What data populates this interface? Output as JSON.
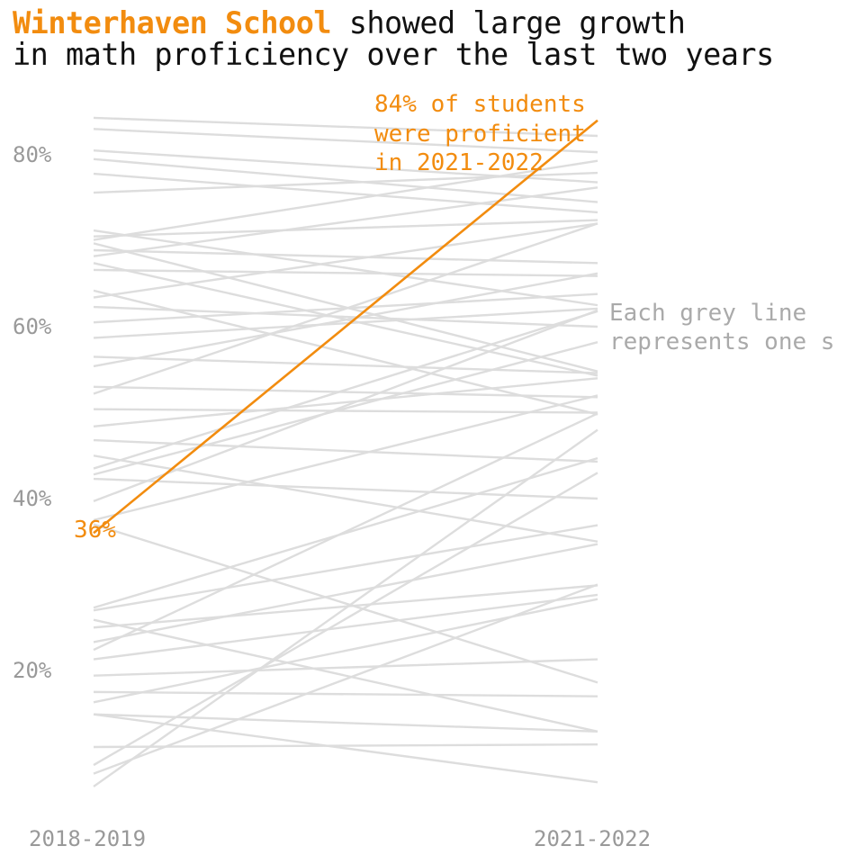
{
  "title": {
    "highlight": "Winterhaven School",
    "rest_line1": " showed large growth",
    "line2": "in math proficiency over the last two years"
  },
  "colors": {
    "highlight": "#f28c0f",
    "others": "#dddddd",
    "axis_text": "#999999"
  },
  "annotations": {
    "end": [
      "84% of students",
      "were proficient",
      "in 2021-2022"
    ],
    "start": "36%",
    "grey_note": [
      "Each grey line",
      "represents one s"
    ]
  },
  "chart_data": {
    "type": "line",
    "x": [
      "2018-2019",
      "2021-2022"
    ],
    "y_ticks": [
      "20%",
      "40%",
      "60%",
      "80%"
    ],
    "ylim": [
      5,
      86
    ],
    "grid": false,
    "highlight": {
      "name": "Winterhaven School",
      "values": [
        36,
        84
      ]
    },
    "series": [
      {
        "values": [
          84.3,
          82.2
        ]
      },
      {
        "values": [
          83.0,
          80.3
        ]
      },
      {
        "values": [
          80.5,
          76.8
        ]
      },
      {
        "values": [
          79.5,
          74.5
        ]
      },
      {
        "values": [
          77.8,
          73.3
        ]
      },
      {
        "values": [
          75.6,
          77.9
        ]
      },
      {
        "values": [
          71.2,
          62.5
        ]
      },
      {
        "values": [
          70.5,
          72.4
        ]
      },
      {
        "values": [
          70.1,
          79.3
        ]
      },
      {
        "values": [
          69.7,
          54.8
        ]
      },
      {
        "values": [
          68.9,
          67.4
        ]
      },
      {
        "values": [
          68.2,
          76.2
        ]
      },
      {
        "values": [
          67.4,
          54.3
        ]
      },
      {
        "values": [
          66.6,
          65.9
        ]
      },
      {
        "values": [
          64.2,
          49.8
        ]
      },
      {
        "values": [
          63.4,
          72.0
        ]
      },
      {
        "values": [
          62.3,
          60.0
        ]
      },
      {
        "values": [
          60.5,
          63.8
        ]
      },
      {
        "values": [
          58.7,
          62.1
        ]
      },
      {
        "values": [
          56.5,
          54.6
        ]
      },
      {
        "values": [
          55.4,
          66.2
        ]
      },
      {
        "values": [
          53.0,
          51.8
        ]
      },
      {
        "values": [
          52.2,
          72.0
        ]
      },
      {
        "values": [
          50.4,
          50.0
        ]
      },
      {
        "values": [
          48.4,
          54.0
        ]
      },
      {
        "values": [
          46.8,
          44.3
        ]
      },
      {
        "values": [
          45.0,
          35.0
        ]
      },
      {
        "values": [
          43.5,
          61.8
        ]
      },
      {
        "values": [
          42.8,
          58.2
        ]
      },
      {
        "values": [
          42.3,
          40.0
        ]
      },
      {
        "values": [
          39.7,
          61.9
        ]
      },
      {
        "values": [
          37.5,
          52.0
        ]
      },
      {
        "values": [
          37.0,
          18.6
        ]
      },
      {
        "values": [
          27.3,
          44.7
        ]
      },
      {
        "values": [
          27.0,
          36.9
        ]
      },
      {
        "values": [
          25.9,
          12.9
        ]
      },
      {
        "values": [
          25.0,
          29.9
        ]
      },
      {
        "values": [
          23.3,
          34.7
        ]
      },
      {
        "values": [
          22.4,
          49.9
        ]
      },
      {
        "values": [
          21.3,
          28.8
        ]
      },
      {
        "values": [
          19.4,
          21.3
        ]
      },
      {
        "values": [
          17.5,
          17.0
        ]
      },
      {
        "values": [
          16.3,
          28.3
        ]
      },
      {
        "values": [
          14.9,
          12.9
        ]
      },
      {
        "values": [
          11.1,
          11.4
        ]
      },
      {
        "values": [
          9.0,
          43.0
        ]
      },
      {
        "values": [
          8.0,
          30.0
        ]
      },
      {
        "values": [
          6.5,
          48.0
        ]
      },
      {
        "values": [
          14.9,
          7.0
        ]
      }
    ]
  }
}
